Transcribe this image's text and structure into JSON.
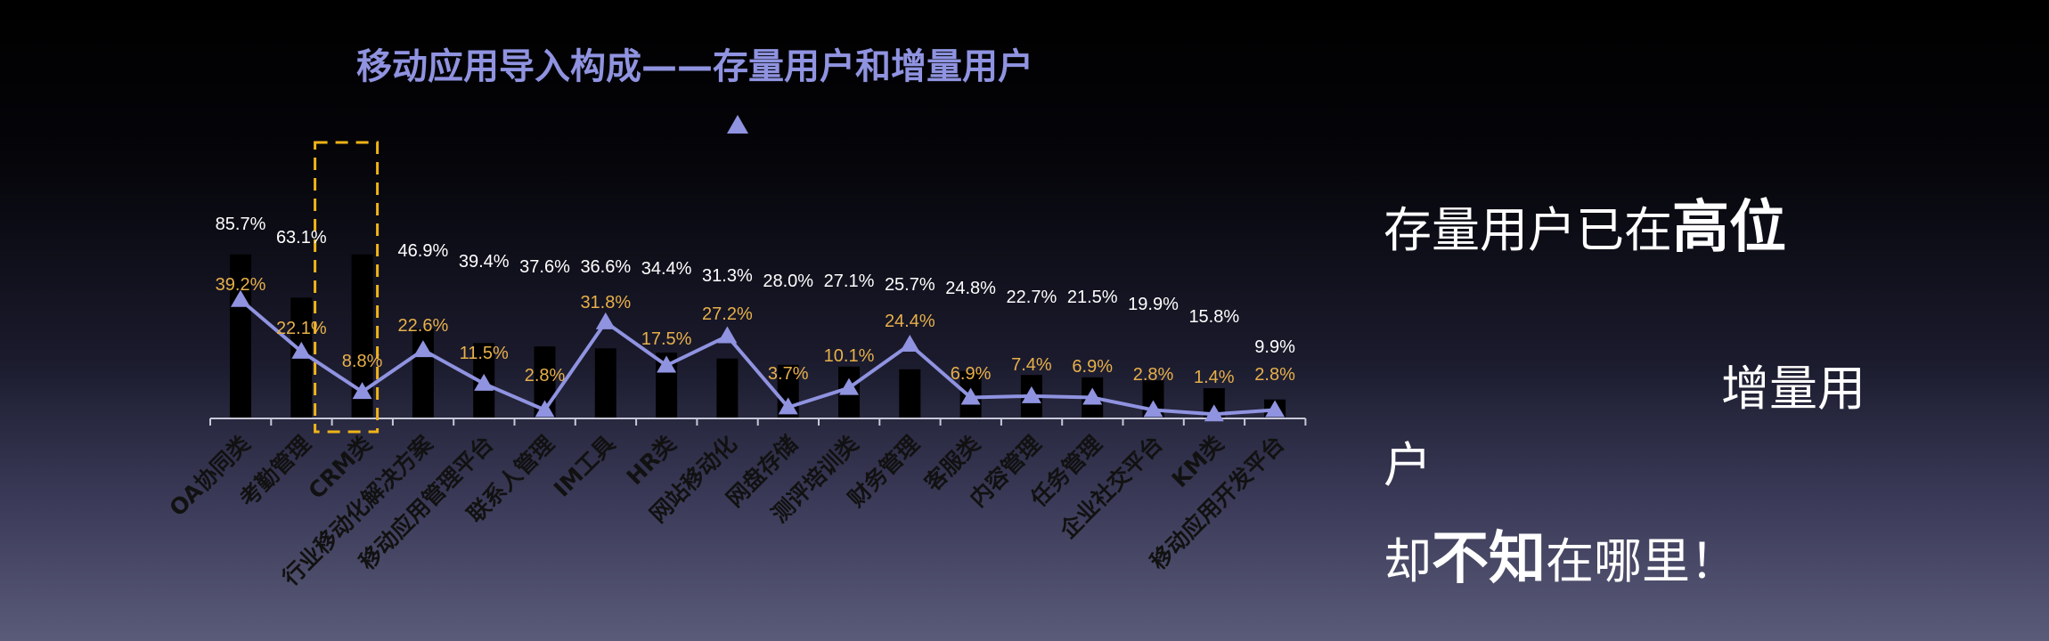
{
  "chart_data": {
    "type": "bar",
    "title": "移动应用导入构成——存量用户和增量用户",
    "categories": [
      "OA协同类",
      "考勤管理",
      "CRM类",
      "行业移动化解决方案",
      "移动应用管理平台",
      "联系人管理",
      "IM工具",
      "HR类",
      "网站移动化",
      "网盘存储",
      "测评培训类",
      "财务管理",
      "客服类",
      "内容管理",
      "任务管理",
      "企业社交平台",
      "KM类",
      "移动应用开发平台"
    ],
    "series": [
      {
        "kind": "bar",
        "values": [
          85.7,
          63.1,
          85.7,
          46.9,
          39.4,
          37.6,
          36.6,
          34.4,
          31.3,
          28.0,
          27.1,
          25.7,
          24.8,
          22.7,
          21.5,
          19.9,
          15.8,
          9.9
        ],
        "labels": [
          "85.7%",
          "63.1%",
          "",
          "46.9%",
          "39.4%",
          "37.6%",
          "36.6%",
          "34.4%",
          "31.3%",
          "28.0%",
          "27.1%",
          "25.7%",
          "24.8%",
          "22.7%",
          "21.5%",
          "19.9%",
          "15.8%",
          "9.9%"
        ]
      },
      {
        "kind": "line",
        "values": [
          39.2,
          22.1,
          8.8,
          22.6,
          11.5,
          2.8,
          31.8,
          17.5,
          27.2,
          3.7,
          10.1,
          24.4,
          6.9,
          7.4,
          6.9,
          2.8,
          1.4,
          2.8
        ],
        "labels": [
          "39.2%",
          "22.1%",
          "8.8%",
          "22.6%",
          "11.5%",
          "2.8%",
          "31.8%",
          "17.5%",
          "27.2%",
          "3.7%",
          "10.1%",
          "24.4%",
          "6.9%",
          "7.4%",
          "6.9%",
          "2.8%",
          "1.4%",
          "2.8%"
        ]
      }
    ],
    "highlight_category": "CRM类",
    "ylim": [
      0,
      100
    ],
    "legend": "top-center",
    "grid": false
  },
  "colors": {
    "line": "#8f93e0",
    "bar": "#000000",
    "bar_label": "#ffffff",
    "line_label": "#e8b04a",
    "highlight_box": "#f0b418",
    "axis": "#c8c8d8",
    "category_label": "#111111"
  },
  "side_text": {
    "line1_normal": "存量用户已在",
    "line1_bold": "高位",
    "line2": "增量用",
    "line3": "户",
    "line4_pre": "却",
    "line4_bold": "不知",
    "line4_post": "在哪里！"
  }
}
